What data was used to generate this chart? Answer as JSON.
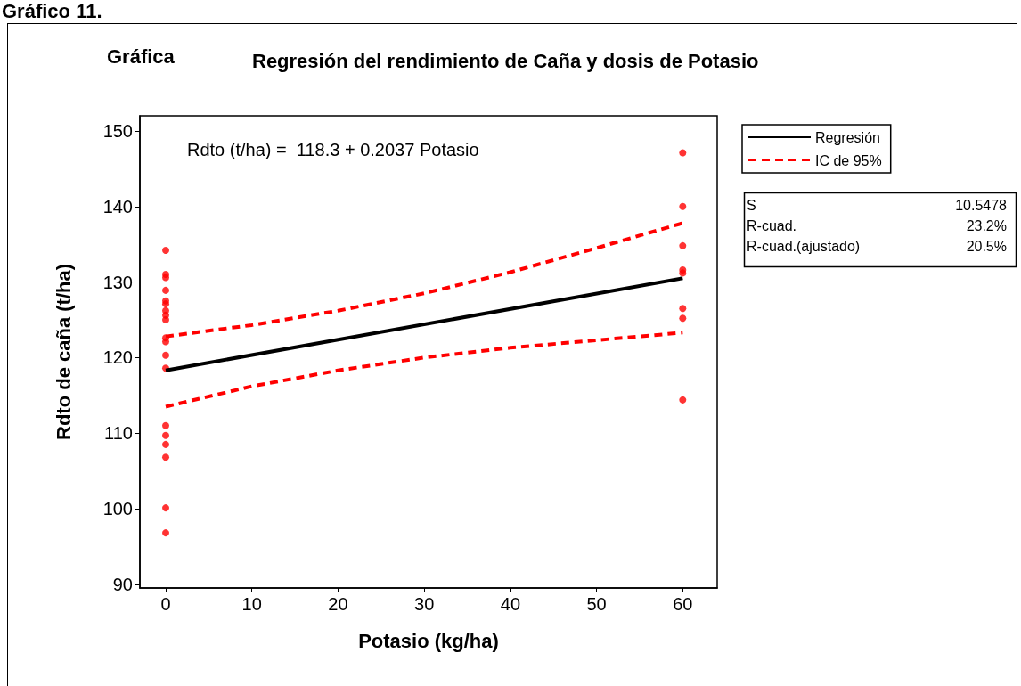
{
  "chart_data": {
    "type": "scatter",
    "title": "Regresión del rendimiento de Caña y dosis de Potasio",
    "xlabel": "Potasio (kg/ha)",
    "ylabel": "Rdto de caña (t/ha)",
    "annotations": [
      "Gráfico 11.",
      "Gráfica",
      "Rdto (t/ha) =  118.3 + 0.2037 Potasio",
      "S",
      "10.5478",
      "R-cuad.",
      "23.2%",
      "R-cuad.(ajustado)",
      "20.5%"
    ],
    "xlim": [
      -3,
      64
    ],
    "xticks": [
      0,
      10,
      20,
      30,
      40,
      50,
      60
    ],
    "ylim": [
      89.5,
      152
    ],
    "yticks": [
      90,
      100,
      110,
      120,
      130,
      140,
      150
    ],
    "grid": false,
    "legend": "top right",
    "series": [
      {
        "color": "#ff0000",
        "marker": "circle",
        "x": [
          0,
          0,
          0,
          0,
          0,
          0,
          0,
          0,
          0,
          0,
          0,
          0,
          0,
          0,
          0,
          0,
          0,
          0,
          0,
          60,
          60,
          60,
          60,
          60,
          60,
          60,
          60
        ],
        "values": [
          134.2,
          131.0,
          130.6,
          128.9,
          127.5,
          127.1,
          126.2,
          125.6,
          125.0,
          122.6,
          122.1,
          120.3,
          118.6,
          111.0,
          109.7,
          108.5,
          106.8,
          100.1,
          96.8,
          147.1,
          140.0,
          134.8,
          131.6,
          131.2,
          126.5,
          125.2,
          114.4
        ]
      },
      {
        "type": "line",
        "name": "Regresión",
        "color": "#000000",
        "marker": "none",
        "line_style": "solid",
        "x": [
          0,
          60
        ],
        "values": [
          118.3,
          130.5
        ]
      },
      {
        "type": "line",
        "name": "IC de 95%",
        "color": "#ff0000",
        "marker": "none",
        "line_style": "dashed",
        "x": [
          0,
          10,
          20,
          30,
          40,
          50,
          60
        ],
        "values": [
          122.8,
          124.3,
          126.2,
          128.5,
          131.3,
          134.5,
          137.8
        ]
      },
      {
        "type": "line",
        "color": "#ff0000",
        "marker": "none",
        "line_style": "dashed",
        "x": [
          0,
          10,
          20,
          30,
          40,
          50,
          60
        ],
        "values": [
          113.5,
          116.2,
          118.3,
          120.0,
          121.3,
          122.3,
          123.3
        ]
      }
    ]
  }
}
